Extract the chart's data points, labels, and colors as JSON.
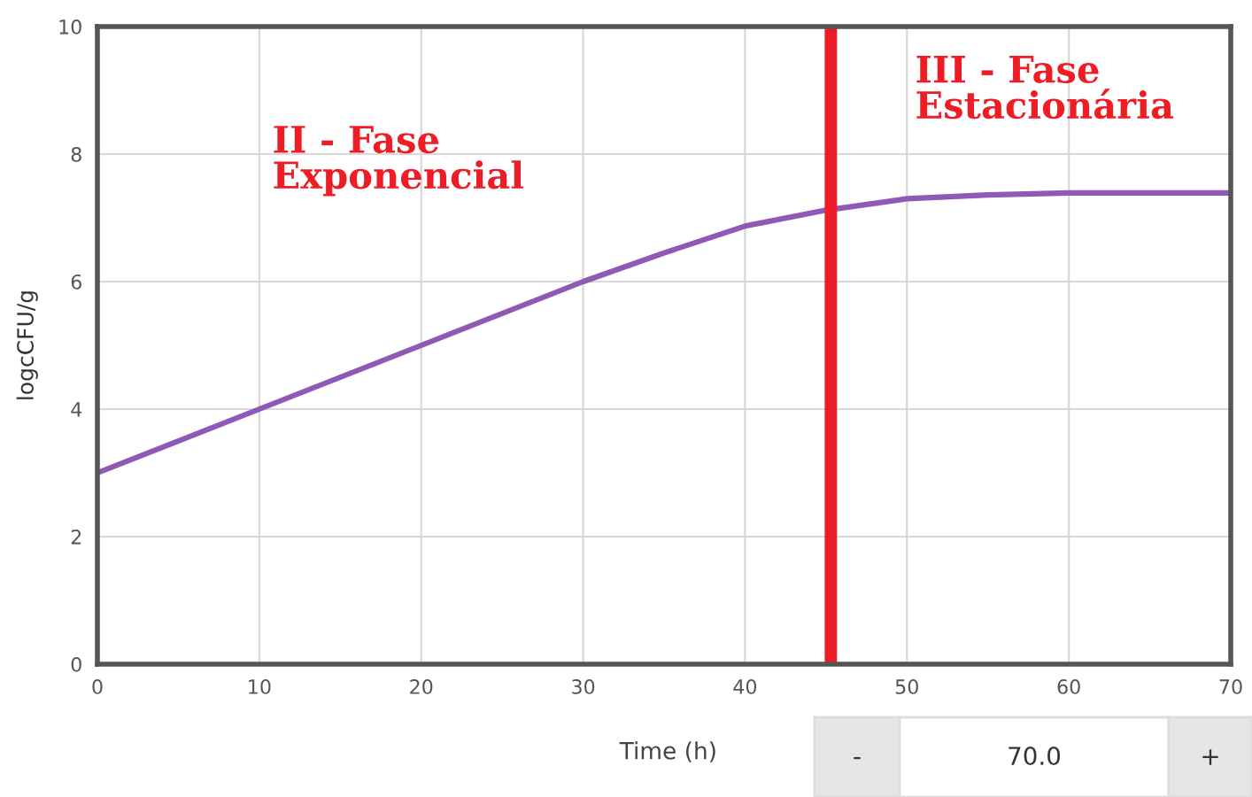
{
  "chart_data": {
    "type": "line",
    "xlabel": "Time (h)",
    "ylabel": "logcCFU/g",
    "x": [
      0,
      10,
      20,
      30,
      35,
      40,
      45,
      50,
      55,
      60,
      70
    ],
    "series": [
      {
        "color": "#8e5ab5",
        "values": [
          3.0,
          4.0,
          5.0,
          6.0,
          6.45,
          6.87,
          7.12,
          7.3,
          7.36,
          7.39,
          7.39
        ]
      }
    ],
    "xlim": [
      0,
      70
    ],
    "xticks": [
      0,
      10,
      20,
      30,
      40,
      50,
      60,
      70
    ],
    "ylim": [
      0,
      10
    ],
    "yticks": [
      0,
      2,
      4,
      6,
      8,
      10
    ],
    "grid": true,
    "marker": "none",
    "line_style": "solid",
    "ref_lines": [
      {
        "axis": "x",
        "value": 45.3,
        "color": "#ee1c25"
      }
    ],
    "annotations": [
      "II - Fase\nExponencial",
      "III - Fase\nEstacionária",
      "-",
      "70.0",
      "+"
    ]
  }
}
